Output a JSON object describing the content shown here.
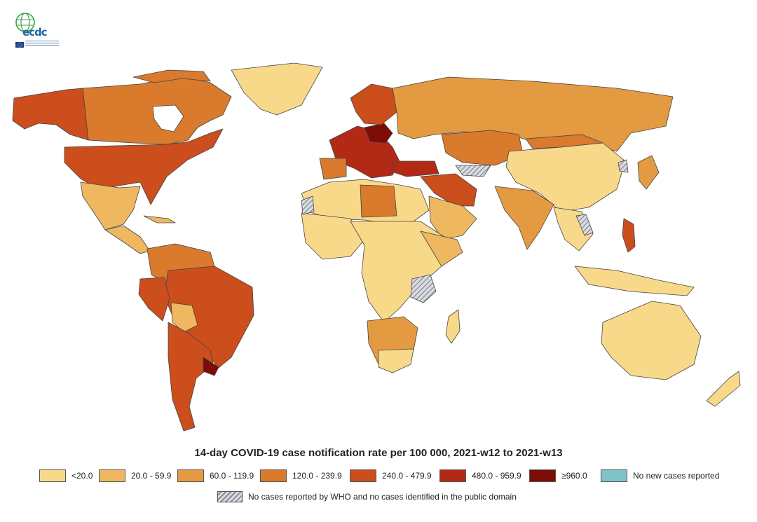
{
  "map": {
    "title": "14-day COVID-19 case notification rate per 100 000, 2021-w12 to 2021-w13",
    "logo_text": "ecdc",
    "colors": {
      "c1": "#f8d98a",
      "c2": "#efb860",
      "c3": "#e49a40",
      "c4": "#d97a2c",
      "c5": "#cb4e1c",
      "c6": "#b22a16",
      "c7": "#7b0c06",
      "nonew": "#7fc3c9"
    },
    "legend": [
      {
        "label": "<20.0",
        "color": "#f8d98a"
      },
      {
        "label": "20.0 - 59.9",
        "color": "#efb860"
      },
      {
        "label": "60.0 - 119.9",
        "color": "#e49a40"
      },
      {
        "label": "120.0 - 239.9",
        "color": "#d97a2c"
      },
      {
        "label": "240.0 - 479.9",
        "color": "#cb4e1c"
      },
      {
        "label": "480.0 - 959.9",
        "color": "#b22a16"
      },
      {
        "label": "≥960.0",
        "color": "#7b0c06"
      },
      {
        "label": "No new cases reported",
        "color": "#7fc3c9"
      }
    ],
    "no_data_label": "No cases reported by WHO and no cases identified in the public domain"
  }
}
